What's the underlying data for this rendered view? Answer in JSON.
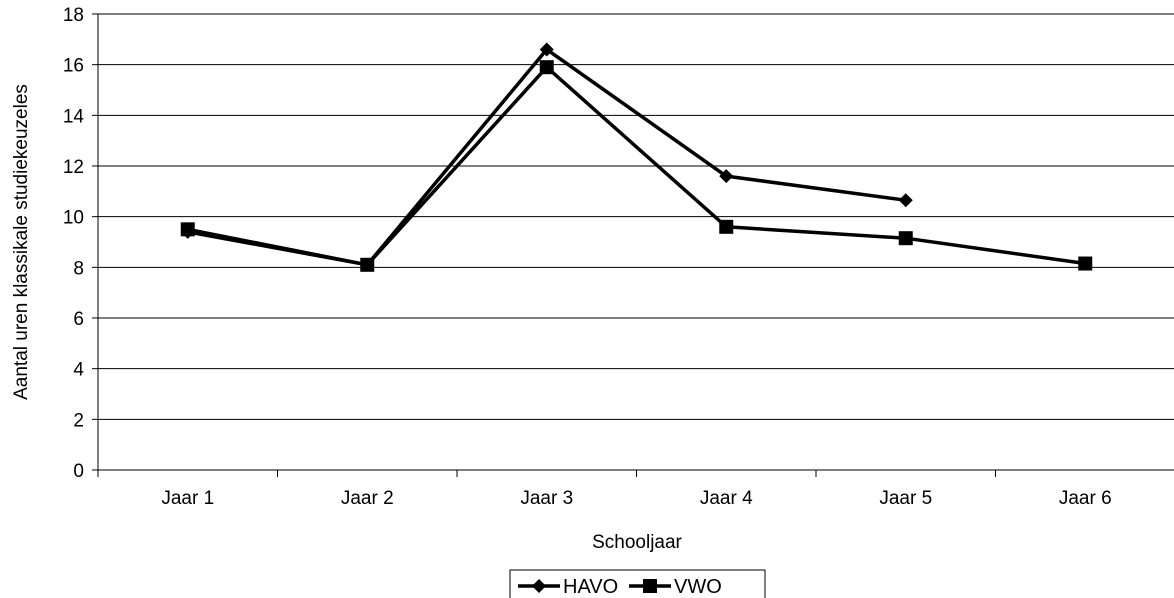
{
  "chart_data": {
    "type": "line",
    "title": "",
    "xlabel": "Schooljaar",
    "ylabel": "Aantal uren klassikale studiekeuzeles",
    "categories": [
      "Jaar 1",
      "Jaar 2",
      "Jaar 3",
      "Jaar 4",
      "Jaar 5",
      "Jaar 6"
    ],
    "ylim": [
      0,
      18
    ],
    "yticks": [
      0,
      2,
      4,
      6,
      8,
      10,
      12,
      14,
      16,
      18
    ],
    "grid": true,
    "legend_position": "bottom",
    "series": [
      {
        "name": "HAVO",
        "marker": "diamond",
        "color": "#000000",
        "values": [
          9.4,
          8.1,
          16.6,
          11.6,
          10.65,
          null
        ]
      },
      {
        "name": "VWO",
        "marker": "square",
        "color": "#000000",
        "values": [
          9.5,
          8.1,
          15.9,
          9.6,
          9.15,
          8.15
        ]
      }
    ]
  }
}
